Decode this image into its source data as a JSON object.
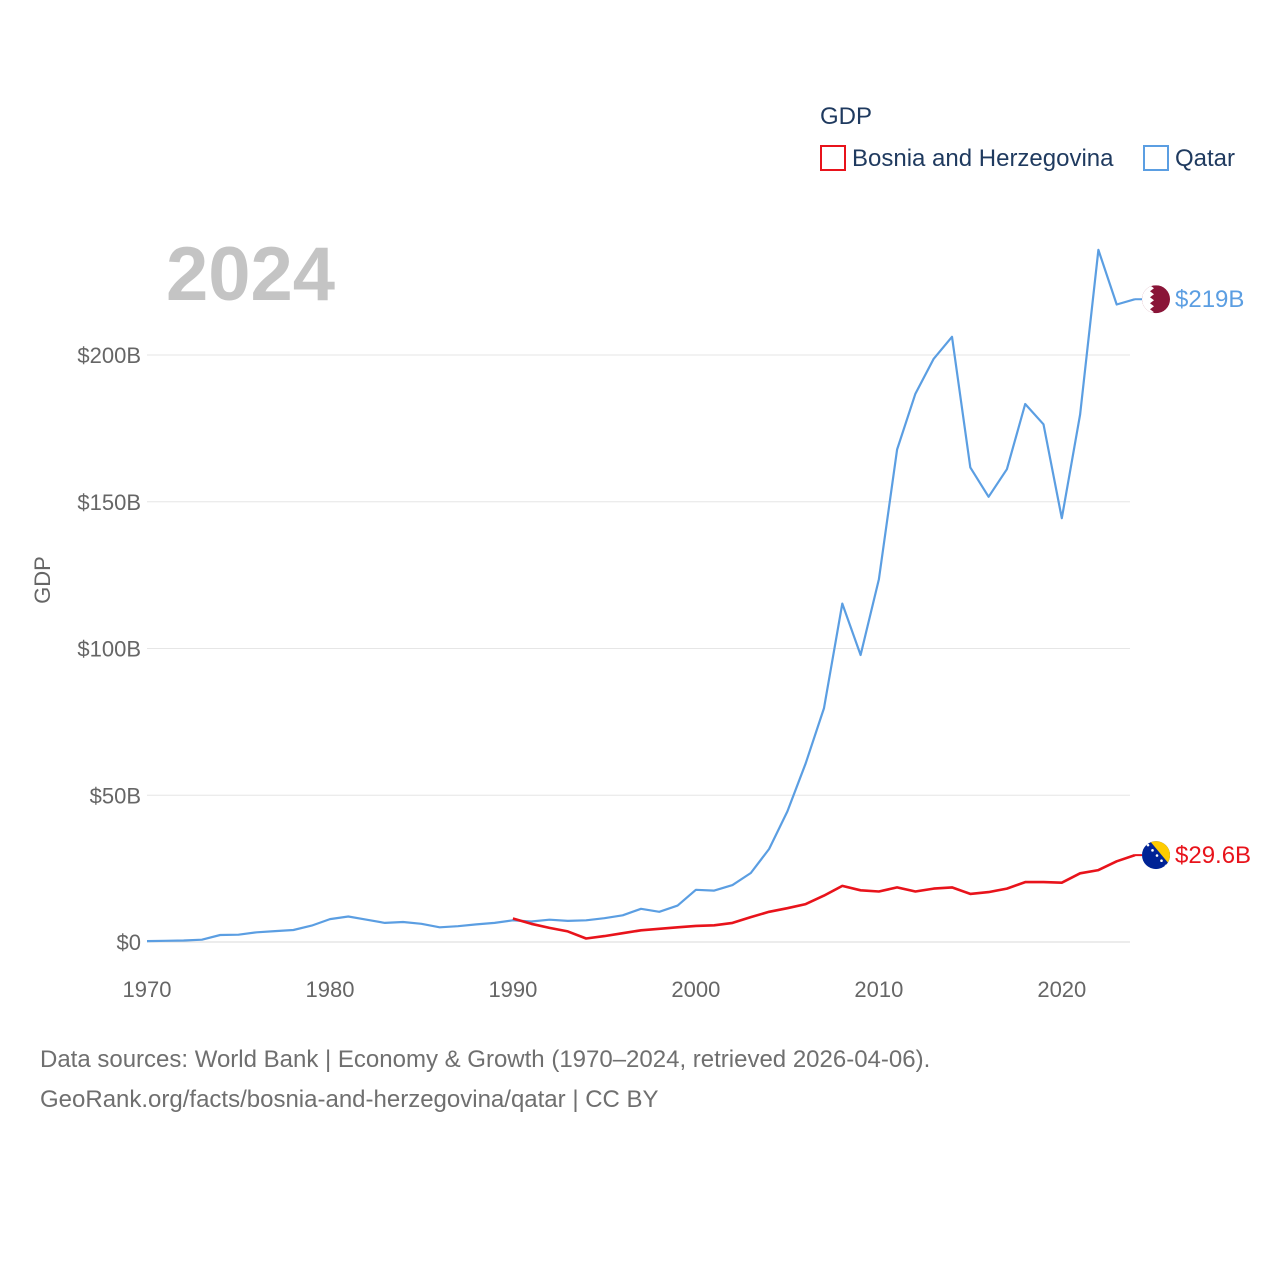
{
  "chart_data": {
    "type": "line",
    "title": "GDP",
    "year_label": "2024",
    "ylabel": "GDP",
    "xlabel": "",
    "xlim": [
      1970,
      2024
    ],
    "ylim": [
      0,
      200
    ],
    "x_ticks": [
      1970,
      1980,
      1990,
      2000,
      2010,
      2020
    ],
    "y_ticks": [
      {
        "value": 0,
        "label": "$0"
      },
      {
        "value": 50,
        "label": "$50B"
      },
      {
        "value": 100,
        "label": "$100B"
      },
      {
        "value": 150,
        "label": "$150B"
      },
      {
        "value": 200,
        "label": "$200B"
      }
    ],
    "grid": true,
    "legend_position": "top-right",
    "series": [
      {
        "name": "Bosnia and Herzegovina",
        "color": "#e8131b",
        "end_label": "$29.6B",
        "flag": "bosnia-flag",
        "x": [
          1990,
          1991,
          1992,
          1993,
          1994,
          1995,
          1996,
          1997,
          1998,
          1999,
          2000,
          2001,
          2002,
          2003,
          2004,
          2005,
          2006,
          2007,
          2008,
          2009,
          2010,
          2011,
          2012,
          2013,
          2014,
          2015,
          2016,
          2017,
          2018,
          2019,
          2020,
          2021,
          2022,
          2023,
          2024
        ],
        "values": [
          8.0,
          6.2,
          4.8,
          3.6,
          1.2,
          2.0,
          3.0,
          4.0,
          4.5,
          5.0,
          5.5,
          5.7,
          6.5,
          8.5,
          10.3,
          11.5,
          12.9,
          15.8,
          19.1,
          17.6,
          17.2,
          18.6,
          17.2,
          18.2,
          18.6,
          16.4,
          17.0,
          18.2,
          20.4,
          20.4,
          20.2,
          23.4,
          24.5,
          27.5,
          29.6
        ]
      },
      {
        "name": "Qatar",
        "color": "#5b9ee2",
        "end_label": "$219B",
        "flag": "qatar-flag",
        "x": [
          1970,
          1971,
          1972,
          1973,
          1974,
          1975,
          1976,
          1977,
          1978,
          1979,
          1980,
          1981,
          1982,
          1983,
          1984,
          1985,
          1986,
          1987,
          1988,
          1989,
          1990,
          1991,
          1992,
          1993,
          1994,
          1995,
          1996,
          1997,
          1998,
          1999,
          2000,
          2001,
          2002,
          2003,
          2004,
          2005,
          2006,
          2007,
          2008,
          2009,
          2010,
          2011,
          2012,
          2013,
          2014,
          2015,
          2016,
          2017,
          2018,
          2019,
          2020,
          2021,
          2022,
          2023,
          2024
        ],
        "values": [
          0.3,
          0.4,
          0.5,
          0.8,
          2.4,
          2.5,
          3.3,
          3.7,
          4.1,
          5.6,
          7.8,
          8.7,
          7.6,
          6.5,
          6.8,
          6.2,
          5.0,
          5.4,
          6.0,
          6.5,
          7.4,
          7.0,
          7.6,
          7.2,
          7.4,
          8.1,
          9.1,
          11.3,
          10.3,
          12.4,
          17.8,
          17.5,
          19.4,
          23.5,
          31.7,
          44.5,
          60.9,
          79.7,
          115.3,
          97.8,
          123.6,
          167.8,
          186.8,
          198.7,
          206.2,
          161.7,
          151.7,
          161.1,
          183.3,
          176.4,
          144.4,
          179.7,
          235.8,
          217.2,
          219.0
        ]
      }
    ]
  },
  "source": {
    "line1": "Data sources: World Bank | Economy & Growth (1970–2024, retrieved 2026-04-06).",
    "line2": "GeoRank.org/facts/bosnia-and-herzegovina/qatar | CC BY"
  }
}
